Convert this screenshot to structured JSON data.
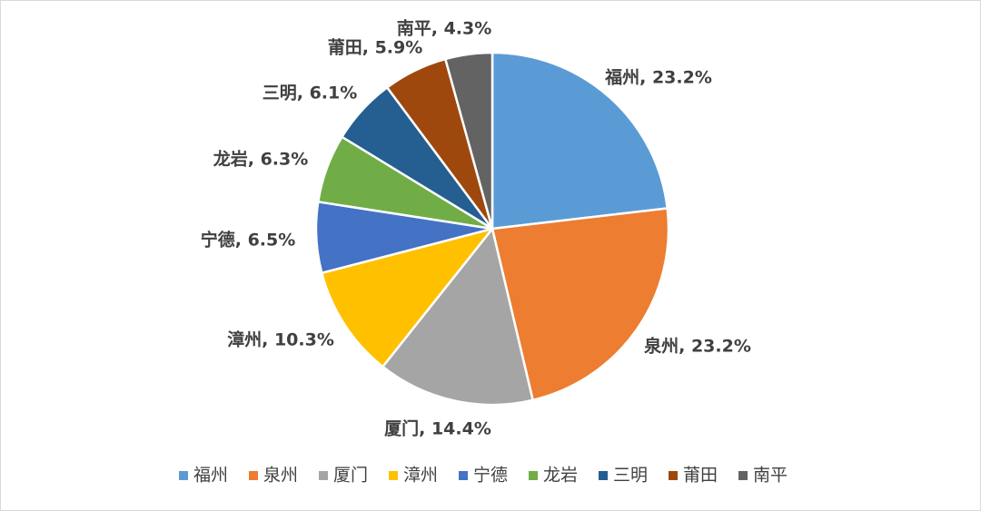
{
  "chart_data": {
    "type": "pie",
    "title": "",
    "legend_position": "bottom",
    "slices": [
      {
        "label": "福州",
        "value": 23.2,
        "display": "福州, 23.2%",
        "color": "#5b9bd5"
      },
      {
        "label": "泉州",
        "value": 23.2,
        "display": "泉州, 23.2%",
        "color": "#ed7d31"
      },
      {
        "label": "厦门",
        "value": 14.4,
        "display": "厦门, 14.4%",
        "color": "#a5a5a5"
      },
      {
        "label": "漳州",
        "value": 10.3,
        "display": "漳州, 10.3%",
        "color": "#ffc000"
      },
      {
        "label": "宁德",
        "value": 6.5,
        "display": "宁德, 6.5%",
        "color": "#4472c4"
      },
      {
        "label": "龙岩",
        "value": 6.3,
        "display": "龙岩, 6.3%",
        "color": "#70ad47"
      },
      {
        "label": "三明",
        "value": 6.1,
        "display": "三明, 6.1%",
        "color": "#255e91"
      },
      {
        "label": "莆田",
        "value": 5.9,
        "display": "莆田, 5.9%",
        "color": "#9e480e"
      },
      {
        "label": "南平",
        "value": 4.3,
        "display": "南平, 4.3%",
        "color": "#636363"
      }
    ]
  }
}
